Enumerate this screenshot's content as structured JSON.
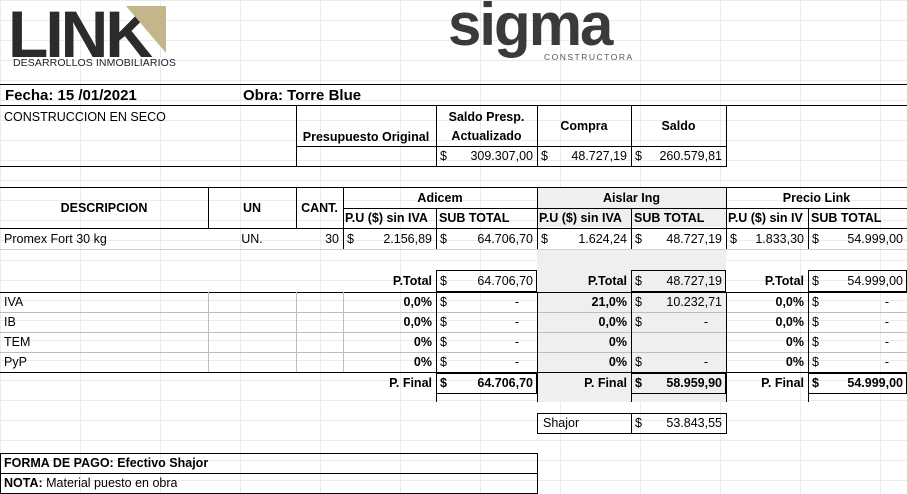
{
  "brand": {
    "link_logo": "LINK",
    "link_sub": "DESARROLLOS INMOBILIARIOS",
    "sigma_logo": "sigma",
    "sigma_sub": "CONSTRUCTORA"
  },
  "header": {
    "fecha": "Fecha: 15 /01/2021",
    "obra": "Obra: Torre Blue",
    "section": "CONSTRUCCION EN SECO",
    "presupuesto_label": "Presupuesto Original",
    "saldo_presp_label_1": "Saldo Presp.",
    "saldo_presp_label_2": "Actualizado",
    "compra_label": "Compra",
    "saldo_label": "Saldo",
    "currency": "$",
    "saldo_presp_value": "309.307,00",
    "compra_value": "48.727,19",
    "saldo_value": "260.579,81"
  },
  "table": {
    "col_descripcion": "DESCRIPCION",
    "col_un": "UN",
    "col_cant": "CANT.",
    "supplier_1": "Adicem",
    "supplier_2": "Aislar Ing",
    "supplier_3": "Precio Link",
    "pu_label": "P.U ($) sin IVA",
    "pu_label_cut": "P.U ($) sin IV",
    "subtotal_label": "SUB TOTAL",
    "item": {
      "descripcion": "Promex Fort 30 kg",
      "un": "UN.",
      "cant": "30",
      "s1_pu": "2.156,89",
      "s1_sub": "64.706,70",
      "s2_pu": "1.624,24",
      "s2_sub": "48.727,19",
      "s3_pu": "1.833,30",
      "s3_sub": "54.999,00"
    },
    "ptotal_label": "P.Total",
    "ptotal": [
      "64.706,70",
      "48.727,19",
      "54.999,00"
    ],
    "taxes": [
      {
        "name": "IVA",
        "pct": [
          "0,0%",
          "21,0%",
          "0,0%"
        ],
        "val": [
          "-",
          "10.232,71",
          "-"
        ]
      },
      {
        "name": "IB",
        "pct": [
          "0,0%",
          "0,0%",
          "0,0%"
        ],
        "val": [
          "-",
          "-",
          "-"
        ]
      },
      {
        "name": "TEM",
        "pct": [
          "0%",
          "0%",
          "0%"
        ],
        "val": [
          "-",
          "",
          "-"
        ]
      },
      {
        "name": "PyP",
        "pct": [
          "0%",
          "0%",
          "0%"
        ],
        "val": [
          "-",
          "-",
          "-"
        ]
      }
    ],
    "pfinal_label": "P. Final",
    "pfinal": [
      "64.706,70",
      "58.959,90",
      "54.999,00"
    ]
  },
  "shajor": {
    "label": "Shajor",
    "value": "53.843,55"
  },
  "footer": {
    "forma_pago": "FORMA DE PAGO: Efectivo Shajor",
    "nota_label": "NOTA:",
    "nota_text": " Material puesto en obra"
  }
}
